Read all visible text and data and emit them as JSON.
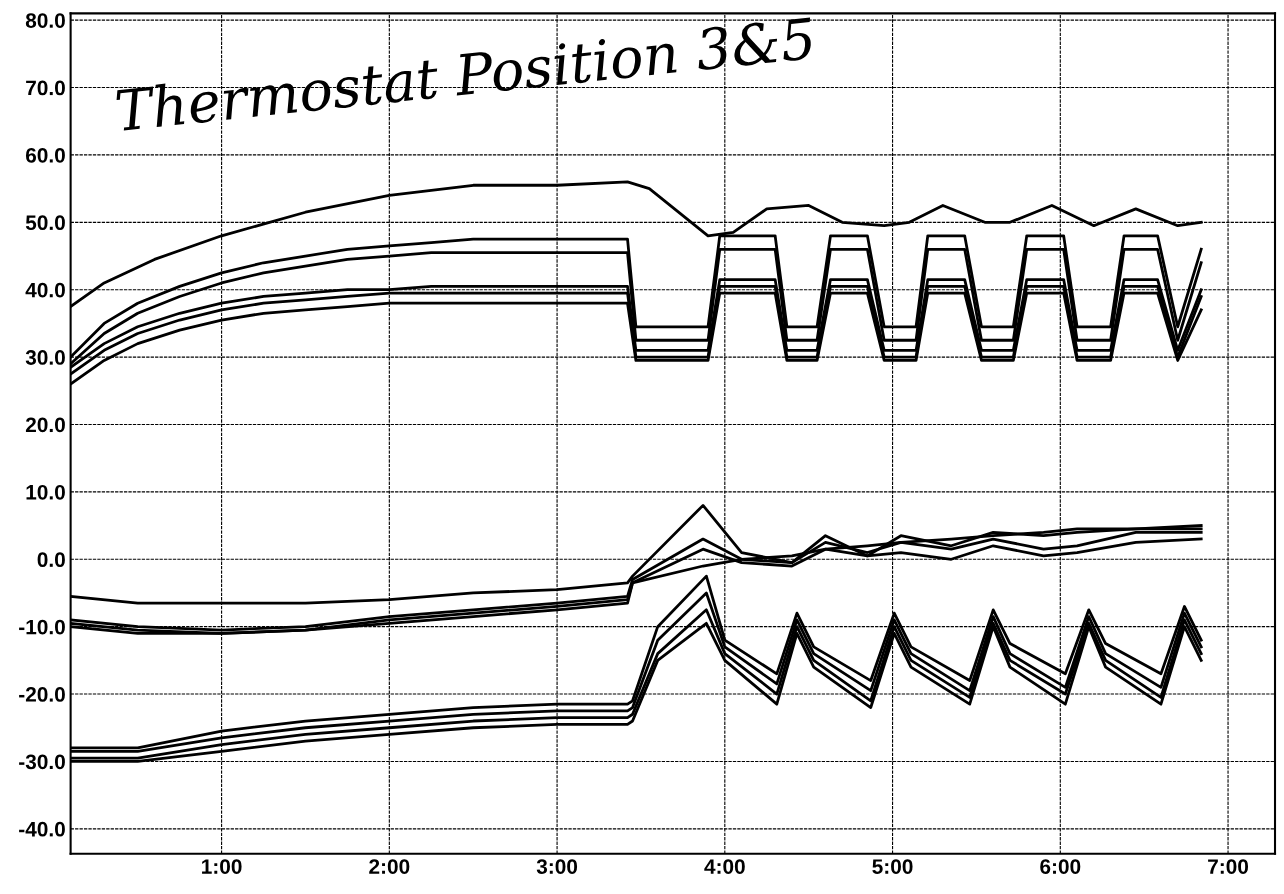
{
  "chart_data": {
    "type": "line",
    "annotations": [
      "Thermostat Position 3&5"
    ],
    "xlim": [
      0.1,
      7.28
    ],
    "ylim": [
      -43.7,
      81
    ],
    "xticks": [
      {
        "value": 1,
        "label": "1:00"
      },
      {
        "value": 2,
        "label": "2:00"
      },
      {
        "value": 3,
        "label": "3:00"
      },
      {
        "value": 4,
        "label": "4:00"
      },
      {
        "value": 5,
        "label": "5:00"
      },
      {
        "value": 6,
        "label": "6:00"
      },
      {
        "value": 7,
        "label": "7:00"
      }
    ],
    "yticks": [
      {
        "value": -40,
        "label": "-40.0"
      },
      {
        "value": -30,
        "label": "-30.0"
      },
      {
        "value": -20,
        "label": "-20.0"
      },
      {
        "value": -10,
        "label": "-10.0"
      },
      {
        "value": 0,
        "label": "0.0"
      },
      {
        "value": 10,
        "label": "10.0"
      },
      {
        "value": 20,
        "label": "20.0"
      },
      {
        "value": 30,
        "label": "30.0"
      },
      {
        "value": 40,
        "label": "40.0"
      },
      {
        "value": 50,
        "label": "50.0"
      },
      {
        "value": 60,
        "label": "60.0"
      },
      {
        "value": 70,
        "label": "70.0"
      },
      {
        "value": 80,
        "label": "80.0"
      }
    ],
    "grid": true,
    "marker": "none",
    "line_style": "solid",
    "series": [
      {
        "color": "#000000",
        "x": [
          0.1,
          0.3,
          0.6,
          1.0,
          1.5,
          2.0,
          2.5,
          3.0,
          3.42,
          3.55,
          3.75,
          3.9,
          4.05,
          4.25,
          4.5,
          4.7,
          4.95,
          5.1,
          5.3,
          5.55,
          5.7,
          5.95,
          6.2,
          6.45,
          6.7,
          6.84
        ],
        "values": [
          37.5,
          41,
          44.5,
          48,
          51.5,
          54,
          55.5,
          55.5,
          56,
          55,
          51,
          48,
          48.5,
          52,
          52.5,
          50,
          49.5,
          50,
          52.5,
          50,
          50,
          52.5,
          49.5,
          52,
          49.5,
          50
        ]
      },
      {
        "color": "#000000",
        "x": [
          0.1,
          0.3,
          0.5,
          0.75,
          1.0,
          1.25,
          1.5,
          1.75,
          2.0,
          2.25,
          2.5,
          2.75,
          3.0,
          3.2,
          3.42,
          3.47,
          3.6,
          3.9,
          3.97,
          4.3,
          4.37,
          4.55,
          4.63,
          4.85,
          4.95,
          5.14,
          5.21,
          5.43,
          5.53,
          5.72,
          5.8,
          6.02,
          6.1,
          6.3,
          6.38,
          6.58,
          6.7,
          6.84
        ],
        "values": [
          30,
          35,
          38,
          40.5,
          42.5,
          44,
          45,
          46,
          46.5,
          47,
          47.5,
          47.5,
          47.5,
          47.5,
          47.5,
          34.5,
          34.5,
          34.5,
          48,
          48,
          34.5,
          34.5,
          48,
          48,
          34.5,
          34.5,
          48,
          48,
          34.5,
          34.5,
          48,
          48,
          34.5,
          34.5,
          48,
          48,
          34.5,
          46
        ]
      },
      {
        "color": "#000000",
        "x": [
          0.1,
          0.3,
          0.5,
          0.75,
          1.0,
          1.25,
          1.5,
          1.75,
          2.0,
          2.25,
          2.5,
          2.75,
          3.0,
          3.2,
          3.42,
          3.47,
          3.6,
          3.9,
          3.97,
          4.3,
          4.37,
          4.55,
          4.63,
          4.85,
          4.95,
          5.14,
          5.21,
          5.43,
          5.53,
          5.72,
          5.8,
          6.02,
          6.1,
          6.3,
          6.38,
          6.58,
          6.7,
          6.84
        ],
        "values": [
          29,
          33.5,
          36.5,
          39,
          41,
          42.5,
          43.5,
          44.5,
          45,
          45.5,
          45.5,
          45.5,
          45.5,
          45.5,
          45.5,
          32.5,
          32.5,
          32.5,
          46,
          46,
          32.5,
          32.5,
          46,
          46,
          32.5,
          32.5,
          46,
          46,
          32.5,
          32.5,
          46,
          46,
          32.5,
          32.5,
          46,
          46,
          32.5,
          44
        ]
      },
      {
        "color": "#000000",
        "x": [
          0.1,
          0.3,
          0.5,
          0.75,
          1.0,
          1.25,
          1.5,
          1.75,
          2.0,
          2.25,
          2.5,
          2.75,
          3.0,
          3.2,
          3.42,
          3.47,
          3.6,
          3.9,
          3.97,
          4.3,
          4.37,
          4.55,
          4.63,
          4.85,
          4.95,
          5.14,
          5.21,
          5.43,
          5.53,
          5.72,
          5.8,
          6.02,
          6.1,
          6.3,
          6.38,
          6.58,
          6.7,
          6.84
        ],
        "values": [
          28.5,
          32,
          34.5,
          36.5,
          38,
          39,
          39.5,
          40,
          40,
          40.5,
          40.5,
          40.5,
          40.5,
          40.5,
          40.5,
          31,
          31,
          31,
          41.5,
          41.5,
          31,
          31,
          41.5,
          41.5,
          31,
          31,
          41.5,
          41.5,
          31,
          31,
          41.5,
          41.5,
          31,
          31,
          41.5,
          41.5,
          31,
          40
        ]
      },
      {
        "color": "#000000",
        "x": [
          0.1,
          0.3,
          0.5,
          0.75,
          1.0,
          1.25,
          1.5,
          1.75,
          2.0,
          2.25,
          2.5,
          2.75,
          3.0,
          3.2,
          3.42,
          3.47,
          3.6,
          3.9,
          3.97,
          4.3,
          4.37,
          4.55,
          4.63,
          4.85,
          4.95,
          5.14,
          5.21,
          5.43,
          5.53,
          5.72,
          5.8,
          6.02,
          6.1,
          6.3,
          6.38,
          6.58,
          6.7,
          6.84
        ],
        "values": [
          27.5,
          31,
          33.5,
          35.5,
          37,
          38,
          38.5,
          39,
          39.5,
          39.5,
          39.5,
          39.5,
          39.5,
          39.5,
          39.5,
          30,
          30,
          30,
          40.5,
          40.5,
          30,
          30,
          40.5,
          40.5,
          30,
          30,
          40.5,
          40.5,
          30,
          30,
          40.5,
          40.5,
          30,
          30,
          40.5,
          40.5,
          30,
          39
        ]
      },
      {
        "color": "#000000",
        "x": [
          0.1,
          0.3,
          0.5,
          0.75,
          1.0,
          1.25,
          1.5,
          1.75,
          2.0,
          2.25,
          2.5,
          2.75,
          3.0,
          3.2,
          3.42,
          3.47,
          3.6,
          3.9,
          3.97,
          4.3,
          4.37,
          4.55,
          4.63,
          4.85,
          4.95,
          5.14,
          5.21,
          5.43,
          5.53,
          5.72,
          5.8,
          6.02,
          6.1,
          6.3,
          6.38,
          6.58,
          6.7,
          6.84
        ],
        "values": [
          26,
          29.5,
          32,
          34,
          35.5,
          36.5,
          37,
          37.5,
          38,
          38,
          38,
          38,
          38,
          38,
          38,
          29.5,
          29.5,
          29.5,
          39.5,
          39.5,
          29.5,
          29.5,
          39.5,
          39.5,
          29.5,
          29.5,
          39.5,
          39.5,
          29.5,
          29.5,
          39.5,
          39.5,
          29.5,
          29.5,
          39.5,
          39.5,
          29.5,
          37
        ]
      },
      {
        "color": "#000000",
        "x": [
          0.1,
          0.5,
          1.0,
          1.5,
          2.0,
          2.5,
          3.0,
          3.42,
          3.45,
          3.87,
          4.1,
          4.4,
          4.6,
          4.85,
          5.05,
          5.35,
          5.6,
          5.9,
          6.1,
          6.45,
          6.84
        ],
        "values": [
          -5.5,
          -6.5,
          -6.5,
          -6.5,
          -6,
          -5,
          -4.5,
          -3.5,
          -2.5,
          8,
          1,
          -0.5,
          3.5,
          0.5,
          3.5,
          2,
          4,
          3.5,
          4,
          4.5,
          4.5
        ]
      },
      {
        "color": "#000000",
        "x": [
          0.1,
          0.5,
          1.0,
          1.5,
          2.0,
          2.5,
          3.0,
          3.42,
          3.45,
          3.87,
          4.1,
          4.4,
          4.6,
          4.85,
          5.05,
          5.35,
          5.6,
          5.9,
          6.1,
          6.45,
          6.84
        ],
        "values": [
          -9,
          -10,
          -10.5,
          -10,
          -8.5,
          -7.5,
          -6.5,
          -5.5,
          -3,
          3,
          0,
          -0.5,
          2.5,
          1,
          2.5,
          1.5,
          3,
          1.5,
          2,
          4,
          4
        ]
      },
      {
        "color": "#000000",
        "x": [
          0.1,
          0.5,
          1.0,
          1.5,
          2.0,
          2.5,
          3.0,
          3.42,
          3.45,
          3.87,
          4.1,
          4.4,
          4.6,
          4.85,
          5.05,
          5.35,
          5.6,
          5.9,
          6.1,
          6.45,
          6.84
        ],
        "values": [
          -9.5,
          -10.5,
          -11,
          -10.5,
          -9,
          -8,
          -7,
          -6,
          -3.5,
          1.5,
          -0.5,
          -1,
          1.5,
          0.5,
          1,
          0,
          2,
          0.5,
          1,
          2.5,
          3
        ]
      },
      {
        "color": "#000000",
        "x": [
          0.1,
          0.5,
          1.0,
          1.5,
          2.0,
          2.5,
          3.0,
          3.42,
          3.45,
          3.87,
          4.1,
          4.4,
          4.6,
          4.85,
          5.05,
          5.35,
          5.6,
          5.9,
          6.1,
          6.45,
          6.84
        ],
        "values": [
          -10,
          -11,
          -11,
          -10.5,
          -9.5,
          -8.5,
          -7.5,
          -6.5,
          -3.5,
          -1,
          0,
          0.5,
          1.5,
          2,
          2.5,
          3,
          3.5,
          4,
          4.5,
          4.5,
          5
        ]
      },
      {
        "color": "#000000",
        "x": [
          0.1,
          0.5,
          1.0,
          1.5,
          2.0,
          2.5,
          3.0,
          3.42,
          3.45,
          3.6,
          3.89,
          4.0,
          4.31,
          4.43,
          4.53,
          4.87,
          5.01,
          5.11,
          5.46,
          5.6,
          5.7,
          6.03,
          6.17,
          6.27,
          6.6,
          6.74,
          6.84
        ],
        "values": [
          -28,
          -28,
          -25.5,
          -24,
          -23,
          -22,
          -21.5,
          -21.5,
          -21,
          -10,
          -2.5,
          -12,
          -17,
          -8,
          -13,
          -18,
          -8,
          -13,
          -18,
          -7.5,
          -12.5,
          -17,
          -7.5,
          -12.5,
          -17,
          -7,
          -12
        ]
      },
      {
        "color": "#000000",
        "x": [
          0.1,
          0.5,
          1.0,
          1.5,
          2.0,
          2.5,
          3.0,
          3.42,
          3.45,
          3.6,
          3.89,
          4.0,
          4.31,
          4.43,
          4.53,
          4.87,
          5.01,
          5.11,
          5.46,
          5.6,
          5.7,
          6.03,
          6.17,
          6.27,
          6.6,
          6.74,
          6.84
        ],
        "values": [
          -28.5,
          -28.5,
          -26.5,
          -25,
          -24,
          -23,
          -22.5,
          -22.5,
          -22,
          -12,
          -5,
          -13,
          -18.5,
          -9,
          -14,
          -19.5,
          -9,
          -14,
          -19.5,
          -8.5,
          -14,
          -19,
          -8.5,
          -14,
          -19,
          -8,
          -13
        ]
      },
      {
        "color": "#000000",
        "x": [
          0.1,
          0.5,
          1.0,
          1.5,
          2.0,
          2.5,
          3.0,
          3.42,
          3.45,
          3.6,
          3.89,
          4.0,
          4.31,
          4.43,
          4.53,
          4.87,
          5.01,
          5.11,
          5.46,
          5.6,
          5.7,
          6.03,
          6.17,
          6.27,
          6.6,
          6.74,
          6.84
        ],
        "values": [
          -29.5,
          -29.5,
          -27.5,
          -26,
          -25,
          -24,
          -23.5,
          -23.5,
          -23,
          -14,
          -7.5,
          -14,
          -20,
          -10,
          -15,
          -21,
          -10,
          -15,
          -20.5,
          -9.5,
          -15,
          -20,
          -9.5,
          -15,
          -20.5,
          -9,
          -14
        ]
      },
      {
        "color": "#000000",
        "x": [
          0.1,
          0.5,
          1.0,
          1.5,
          2.0,
          2.5,
          3.0,
          3.42,
          3.45,
          3.6,
          3.89,
          4.0,
          4.31,
          4.43,
          4.53,
          4.87,
          5.01,
          5.11,
          5.46,
          5.6,
          5.7,
          6.03,
          6.17,
          6.27,
          6.6,
          6.74,
          6.84
        ],
        "values": [
          -30,
          -30,
          -28.5,
          -27,
          -26,
          -25,
          -24.5,
          -24.5,
          -24,
          -15,
          -9.5,
          -15,
          -21.5,
          -11,
          -16,
          -22,
          -11,
          -16,
          -21.5,
          -10,
          -16,
          -21.5,
          -10,
          -16,
          -21.5,
          -10,
          -15
        ]
      }
    ]
  }
}
